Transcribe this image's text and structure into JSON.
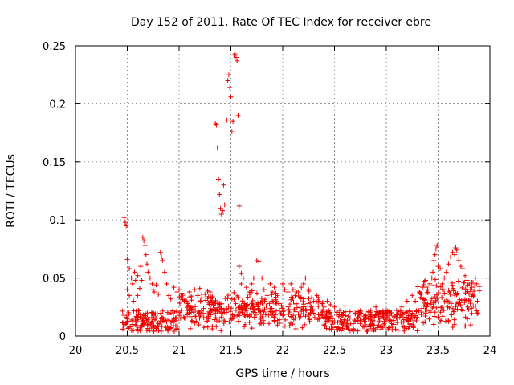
{
  "chart_data": {
    "type": "scatter",
    "title": "Day 152 of 2011, Rate Of TEC Index for receiver ebre",
    "xlabel": "GPS time / hours",
    "ylabel": "ROTI / TECUs",
    "xlim": [
      20,
      24
    ],
    "ylim": [
      0,
      0.25
    ],
    "xticks": [
      20,
      20.5,
      21,
      21.5,
      22,
      22.5,
      23,
      23.5,
      24
    ],
    "xtick_labels": [
      "20",
      "20.5",
      "21",
      "21.5",
      "22",
      "22.5",
      "23",
      "23.5",
      "24"
    ],
    "yticks": [
      0,
      0.05,
      0.1,
      0.15,
      0.2,
      0.25
    ],
    "ytick_labels": [
      "0",
      "0.05",
      "0.1",
      "0.15",
      "0.2",
      "0.25"
    ],
    "grid": true,
    "marker": "+",
    "color": "#ee0000",
    "series": [
      {
        "name": "ROTI",
        "points": [
          [
            20.47,
            0.102
          ],
          [
            20.48,
            0.098
          ],
          [
            20.49,
            0.095
          ],
          [
            20.48,
            0.01
          ],
          [
            20.5,
            0.012
          ],
          [
            20.5,
            0.066
          ],
          [
            20.5,
            0.04
          ],
          [
            20.52,
            0.035
          ],
          [
            20.52,
            0.058
          ],
          [
            20.54,
            0.05
          ],
          [
            20.55,
            0.045
          ],
          [
            20.56,
            0.03
          ],
          [
            20.57,
            0.055
          ],
          [
            20.58,
            0.048
          ],
          [
            20.6,
            0.052
          ],
          [
            20.6,
            0.035
          ],
          [
            20.62,
            0.041
          ],
          [
            20.63,
            0.06
          ],
          [
            20.64,
            0.048
          ],
          [
            20.65,
            0.085
          ],
          [
            20.66,
            0.082
          ],
          [
            20.67,
            0.078
          ],
          [
            20.68,
            0.07
          ],
          [
            20.69,
            0.062
          ],
          [
            20.7,
            0.055
          ],
          [
            20.72,
            0.05
          ],
          [
            20.74,
            0.045
          ],
          [
            20.75,
            0.04
          ],
          [
            20.76,
            0.038
          ],
          [
            20.78,
            0.044
          ],
          [
            20.8,
            0.036
          ],
          [
            20.82,
            0.072
          ],
          [
            20.83,
            0.068
          ],
          [
            20.84,
            0.065
          ],
          [
            20.86,
            0.055
          ],
          [
            20.88,
            0.045
          ],
          [
            20.9,
            0.035
          ],
          [
            20.92,
            0.032
          ],
          [
            20.95,
            0.042
          ],
          [
            20.98,
            0.038
          ],
          [
            21.0,
            0.04
          ],
          [
            21.02,
            0.034
          ],
          [
            21.05,
            0.03
          ],
          [
            21.08,
            0.028
          ],
          [
            21.1,
            0.038
          ],
          [
            21.12,
            0.031
          ],
          [
            21.15,
            0.04
          ],
          [
            21.18,
            0.035
          ],
          [
            21.2,
            0.041
          ],
          [
            21.22,
            0.033
          ],
          [
            21.25,
            0.036
          ],
          [
            21.28,
            0.029
          ],
          [
            21.3,
            0.038
          ],
          [
            21.32,
            0.033
          ],
          [
            21.35,
            0.183
          ],
          [
            21.36,
            0.182
          ],
          [
            21.37,
            0.162
          ],
          [
            21.38,
            0.135
          ],
          [
            21.39,
            0.122
          ],
          [
            21.4,
            0.11
          ],
          [
            21.41,
            0.105
          ],
          [
            21.42,
            0.108
          ],
          [
            21.43,
            0.13
          ],
          [
            21.44,
            0.113
          ],
          [
            21.46,
            0.186
          ],
          [
            21.47,
            0.22
          ],
          [
            21.48,
            0.225
          ],
          [
            21.49,
            0.214
          ],
          [
            21.5,
            0.206
          ],
          [
            21.51,
            0.176
          ],
          [
            21.52,
            0.185
          ],
          [
            21.53,
            0.242
          ],
          [
            21.54,
            0.243
          ],
          [
            21.55,
            0.24
          ],
          [
            21.56,
            0.237
          ],
          [
            21.57,
            0.19
          ],
          [
            21.58,
            0.112
          ],
          [
            21.58,
            0.06
          ],
          [
            21.6,
            0.054
          ],
          [
            21.6,
            0.045
          ],
          [
            21.62,
            0.05
          ],
          [
            21.65,
            0.042
          ],
          [
            21.68,
            0.038
          ],
          [
            21.7,
            0.045
          ],
          [
            21.72,
            0.05
          ],
          [
            21.75,
            0.065
          ],
          [
            21.77,
            0.064
          ],
          [
            21.8,
            0.05
          ],
          [
            21.82,
            0.04
          ],
          [
            21.85,
            0.035
          ],
          [
            21.88,
            0.045
          ],
          [
            21.9,
            0.038
          ],
          [
            21.92,
            0.042
          ],
          [
            21.95,
            0.035
          ],
          [
            22.0,
            0.045
          ],
          [
            22.02,
            0.04
          ],
          [
            22.05,
            0.038
          ],
          [
            22.08,
            0.045
          ],
          [
            22.1,
            0.04
          ],
          [
            22.12,
            0.035
          ],
          [
            22.15,
            0.038
          ],
          [
            22.18,
            0.042
          ],
          [
            22.2,
            0.045
          ],
          [
            22.22,
            0.05
          ],
          [
            22.25,
            0.04
          ],
          [
            22.28,
            0.033
          ],
          [
            22.3,
            0.03
          ],
          [
            22.33,
            0.035
          ],
          [
            22.35,
            0.03
          ],
          [
            22.38,
            0.028
          ],
          [
            22.4,
            0.025
          ],
          [
            22.43,
            0.03
          ],
          [
            22.46,
            0.027
          ],
          [
            22.5,
            0.025
          ],
          [
            22.55,
            0.022
          ],
          [
            22.6,
            0.026
          ],
          [
            22.65,
            0.021
          ],
          [
            22.7,
            0.019
          ],
          [
            22.75,
            0.022
          ],
          [
            22.8,
            0.018
          ],
          [
            22.85,
            0.022
          ],
          [
            22.9,
            0.025
          ],
          [
            22.95,
            0.021
          ],
          [
            23.0,
            0.022
          ],
          [
            23.05,
            0.02
          ],
          [
            23.1,
            0.022
          ],
          [
            23.15,
            0.025
          ],
          [
            23.2,
            0.03
          ],
          [
            23.25,
            0.035
          ],
          [
            23.28,
            0.03
          ],
          [
            23.32,
            0.038
          ],
          [
            23.35,
            0.042
          ],
          [
            23.38,
            0.048
          ],
          [
            23.4,
            0.04
          ],
          [
            23.42,
            0.045
          ],
          [
            23.44,
            0.05
          ],
          [
            23.45,
            0.055
          ],
          [
            23.46,
            0.065
          ],
          [
            23.47,
            0.07
          ],
          [
            23.48,
            0.075
          ],
          [
            23.49,
            0.078
          ],
          [
            23.5,
            0.06
          ],
          [
            23.52,
            0.058
          ],
          [
            23.54,
            0.045
          ],
          [
            23.55,
            0.04
          ],
          [
            23.56,
            0.05
          ],
          [
            23.58,
            0.055
          ],
          [
            23.6,
            0.062
          ],
          [
            23.62,
            0.068
          ],
          [
            23.64,
            0.072
          ],
          [
            23.66,
            0.07
          ],
          [
            23.67,
            0.076
          ],
          [
            23.68,
            0.074
          ],
          [
            23.7,
            0.065
          ],
          [
            23.72,
            0.06
          ],
          [
            23.74,
            0.058
          ],
          [
            23.76,
            0.052
          ],
          [
            23.78,
            0.048
          ],
          [
            23.8,
            0.045
          ],
          [
            23.82,
            0.04
          ],
          [
            23.84,
            0.035
          ],
          [
            23.86,
            0.05
          ],
          [
            23.87,
            0.045
          ],
          [
            23.88,
            0.03
          ]
        ]
      }
    ]
  }
}
